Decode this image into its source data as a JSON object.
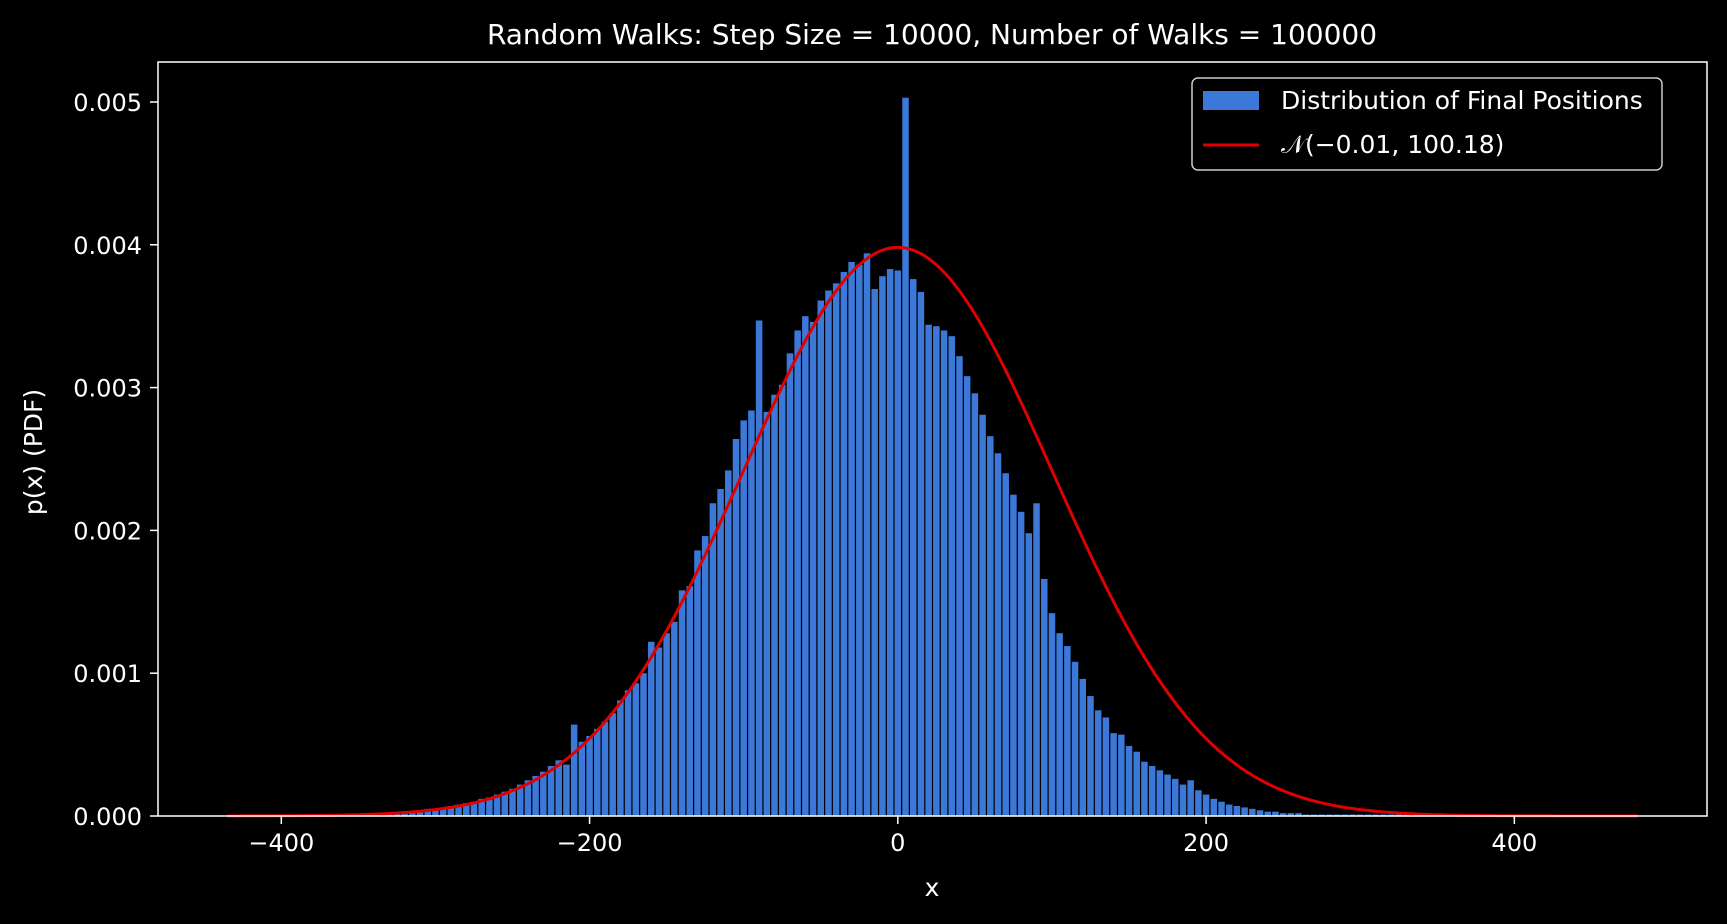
{
  "chart_data": {
    "type": "bar",
    "title": "Random Walks: Step Size = 10000, Number of Walks = 100000",
    "xlabel": "x",
    "ylabel": "p(x) (PDF)",
    "xlim": [
      -480,
      525
    ],
    "ylim": [
      0,
      0.00528
    ],
    "xticks": [
      -400,
      -200,
      0,
      200,
      400
    ],
    "xtick_labels": [
      "−400",
      "−200",
      "0",
      "200",
      "400"
    ],
    "yticks": [
      0,
      0.001,
      0.002,
      0.003,
      0.004,
      0.005
    ],
    "ytick_labels": [
      "0.000",
      "0.001",
      "0.002",
      "0.003",
      "0.004",
      "0.005"
    ],
    "grid": false,
    "legend_position": "upper right",
    "legend": [
      {
        "label": "Distribution of Final Positions",
        "kind": "bar",
        "color": "#3b78d8"
      },
      {
        "label": "𝒩(−0.01, 100.18)",
        "kind": "line",
        "color": "#e00000"
      }
    ],
    "histogram": {
      "name": "Distribution of Final Positions",
      "color": "#3b78d8",
      "bin_width": 5,
      "bins_x": [
        -330,
        -325,
        -320,
        -315,
        -310,
        -305,
        -300,
        -295,
        -290,
        -285,
        -280,
        -275,
        -270,
        -265,
        -260,
        -255,
        -250,
        -245,
        -240,
        -235,
        -230,
        -225,
        -220,
        -215,
        -210,
        -205,
        -200,
        -195,
        -190,
        -185,
        -180,
        -175,
        -170,
        -165,
        -160,
        -155,
        -150,
        -145,
        -140,
        -135,
        -130,
        -125,
        -120,
        -115,
        -110,
        -105,
        -100,
        -95,
        -90,
        -85,
        -80,
        -75,
        -70,
        -65,
        -60,
        -55,
        -50,
        -45,
        -40,
        -35,
        -30,
        -25,
        -20,
        -15,
        -10,
        -5,
        0,
        5,
        10,
        15,
        20,
        25,
        30,
        35,
        40,
        45,
        50,
        55,
        60,
        65,
        70,
        75,
        80,
        85,
        90,
        95,
        100,
        105,
        110,
        115,
        120,
        125,
        130,
        135,
        140,
        145,
        150,
        155,
        160,
        165,
        170,
        175,
        180,
        185,
        190,
        195,
        200,
        205,
        210,
        215,
        220,
        225,
        230,
        235,
        240,
        245,
        250,
        255,
        260,
        265,
        270,
        275,
        280,
        285,
        290,
        295,
        300,
        305,
        310,
        315,
        320,
        325,
        330
      ],
      "values": [
        2e-05,
        2e-05,
        3e-05,
        3e-05,
        4e-05,
        5e-05,
        5e-05,
        6e-05,
        7e-05,
        8e-05,
        9e-05,
        0.0001,
        0.00012,
        0.00013,
        0.00015,
        0.00017,
        0.00019,
        0.00022,
        0.00025,
        0.00028,
        0.00031,
        0.00035,
        0.00039,
        0.00036,
        0.00064,
        0.00052,
        0.00056,
        0.00061,
        0.00066,
        0.00072,
        0.00081,
        0.00088,
        0.00093,
        0.001,
        0.00122,
        0.00118,
        0.00128,
        0.00136,
        0.00158,
        0.00161,
        0.00186,
        0.00196,
        0.00219,
        0.00229,
        0.00242,
        0.00264,
        0.00277,
        0.00284,
        0.00347,
        0.00283,
        0.00295,
        0.00302,
        0.00324,
        0.0034,
        0.0035,
        0.00346,
        0.00361,
        0.00368,
        0.00373,
        0.00381,
        0.00388,
        0.00386,
        0.00394,
        0.00369,
        0.00378,
        0.00383,
        0.00382,
        0.00503,
        0.00376,
        0.00367,
        0.00344,
        0.00343,
        0.0034,
        0.00336,
        0.00322,
        0.00308,
        0.00296,
        0.00281,
        0.00266,
        0.00254,
        0.0024,
        0.00225,
        0.00213,
        0.00198,
        0.00219,
        0.00166,
        0.00142,
        0.00128,
        0.00119,
        0.00108,
        0.00096,
        0.00084,
        0.00074,
        0.00069,
        0.00058,
        0.00057,
        0.00049,
        0.00045,
        0.00038,
        0.00035,
        0.00032,
        0.00029,
        0.00026,
        0.00022,
        0.00025,
        0.00018,
        0.00015,
        0.00012,
        0.0001,
        8e-05,
        7e-05,
        6e-05,
        5e-05,
        4e-05,
        3e-05,
        3e-05,
        2e-05,
        2e-05,
        2e-05,
        1e-05,
        1e-05,
        1e-05,
        1e-05,
        1e-05,
        1e-05,
        1e-05,
        1e-05,
        1e-05,
        1e-05,
        1e-05,
        1e-05,
        1e-05,
        1e-05
      ]
    },
    "normal_fit": {
      "name": "𝒩(−0.01, 100.18)",
      "color": "#e00000",
      "mean": -0.01,
      "std": 100.18,
      "x_range": [
        -435,
        480
      ]
    },
    "colors": {
      "background": "#000000",
      "foreground": "#ffffff",
      "bar": "#3b78d8",
      "line": "#e00000",
      "legend_border": "#cccccc"
    }
  }
}
